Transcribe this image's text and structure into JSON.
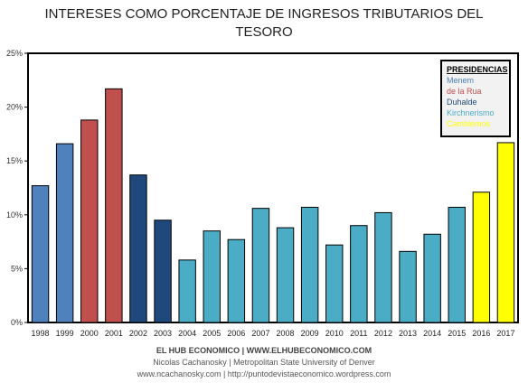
{
  "title_line1": "INTERESES COMO PORCENTAJE DE INGRESOS TRIBUTARIOS DEL",
  "title_line2": "TESORO",
  "legend": {
    "heading": "PRESIDENCIAS",
    "items": [
      {
        "label": "Menem",
        "color": "#4f81bd"
      },
      {
        "label": "de la Rua",
        "color": "#c0504d"
      },
      {
        "label": "Duhalde",
        "color": "#1f497d"
      },
      {
        "label": "Kirchnerismo",
        "color": "#4bacc6"
      },
      {
        "label": "Cambiemos",
        "color": "#ffff00"
      }
    ]
  },
  "chart_data": {
    "type": "bar",
    "categories": [
      "1998",
      "1999",
      "2000",
      "2001",
      "2002",
      "2003",
      "2004",
      "2005",
      "2006",
      "2007",
      "2008",
      "2009",
      "2010",
      "2011",
      "2012",
      "2013",
      "2014",
      "2015",
      "2016",
      "2017"
    ],
    "values": [
      12.7,
      16.6,
      18.8,
      21.7,
      13.7,
      9.5,
      5.8,
      8.5,
      7.7,
      10.6,
      8.8,
      10.7,
      7.2,
      9.0,
      10.2,
      6.6,
      8.2,
      10.7,
      12.1,
      16.7
    ],
    "colors": [
      "#4f81bd",
      "#4f81bd",
      "#c0504d",
      "#c0504d",
      "#1f497d",
      "#1f497d",
      "#4bacc6",
      "#4bacc6",
      "#4bacc6",
      "#4bacc6",
      "#4bacc6",
      "#4bacc6",
      "#4bacc6",
      "#4bacc6",
      "#4bacc6",
      "#4bacc6",
      "#4bacc6",
      "#4bacc6",
      "#ffff00",
      "#ffff00"
    ],
    "yticks": [
      "0%",
      "5%",
      "10%",
      "15%",
      "20%",
      "25%"
    ],
    "ylim": [
      0,
      25
    ],
    "grid": false,
    "legend_position": "top-right"
  },
  "footer": {
    "line1": "EL HUB ECONOMICO | WWW.ELHUBECONOMICO.COM",
    "line2": "Nicolas Cachanosky | Metropolitan State University of Denver",
    "line3": "www.ncachanosky.com | http://puntodevistaeconomico.wordpress.com"
  }
}
